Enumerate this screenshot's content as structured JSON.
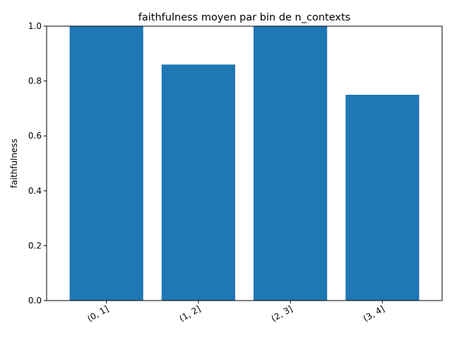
{
  "chart_data": {
    "type": "bar",
    "title": "faithfulness moyen par bin de n_contexts",
    "xlabel": "",
    "ylabel": "faithfulness",
    "categories": [
      "(0, 1]",
      "(1, 2]",
      "(2, 3]",
      "(3, 4]"
    ],
    "values": [
      1.0,
      0.86,
      1.0,
      0.75
    ],
    "ylim": [
      0,
      1.0
    ],
    "yticks": [
      "0.0",
      "0.2",
      "0.4",
      "0.6",
      "0.8",
      "1.0"
    ],
    "ytick_values": [
      0,
      0.2,
      0.4,
      0.6,
      0.8,
      1.0
    ],
    "x_tick_rotation_deg": 30,
    "grid": false,
    "bar_color": "#1f77b4"
  }
}
